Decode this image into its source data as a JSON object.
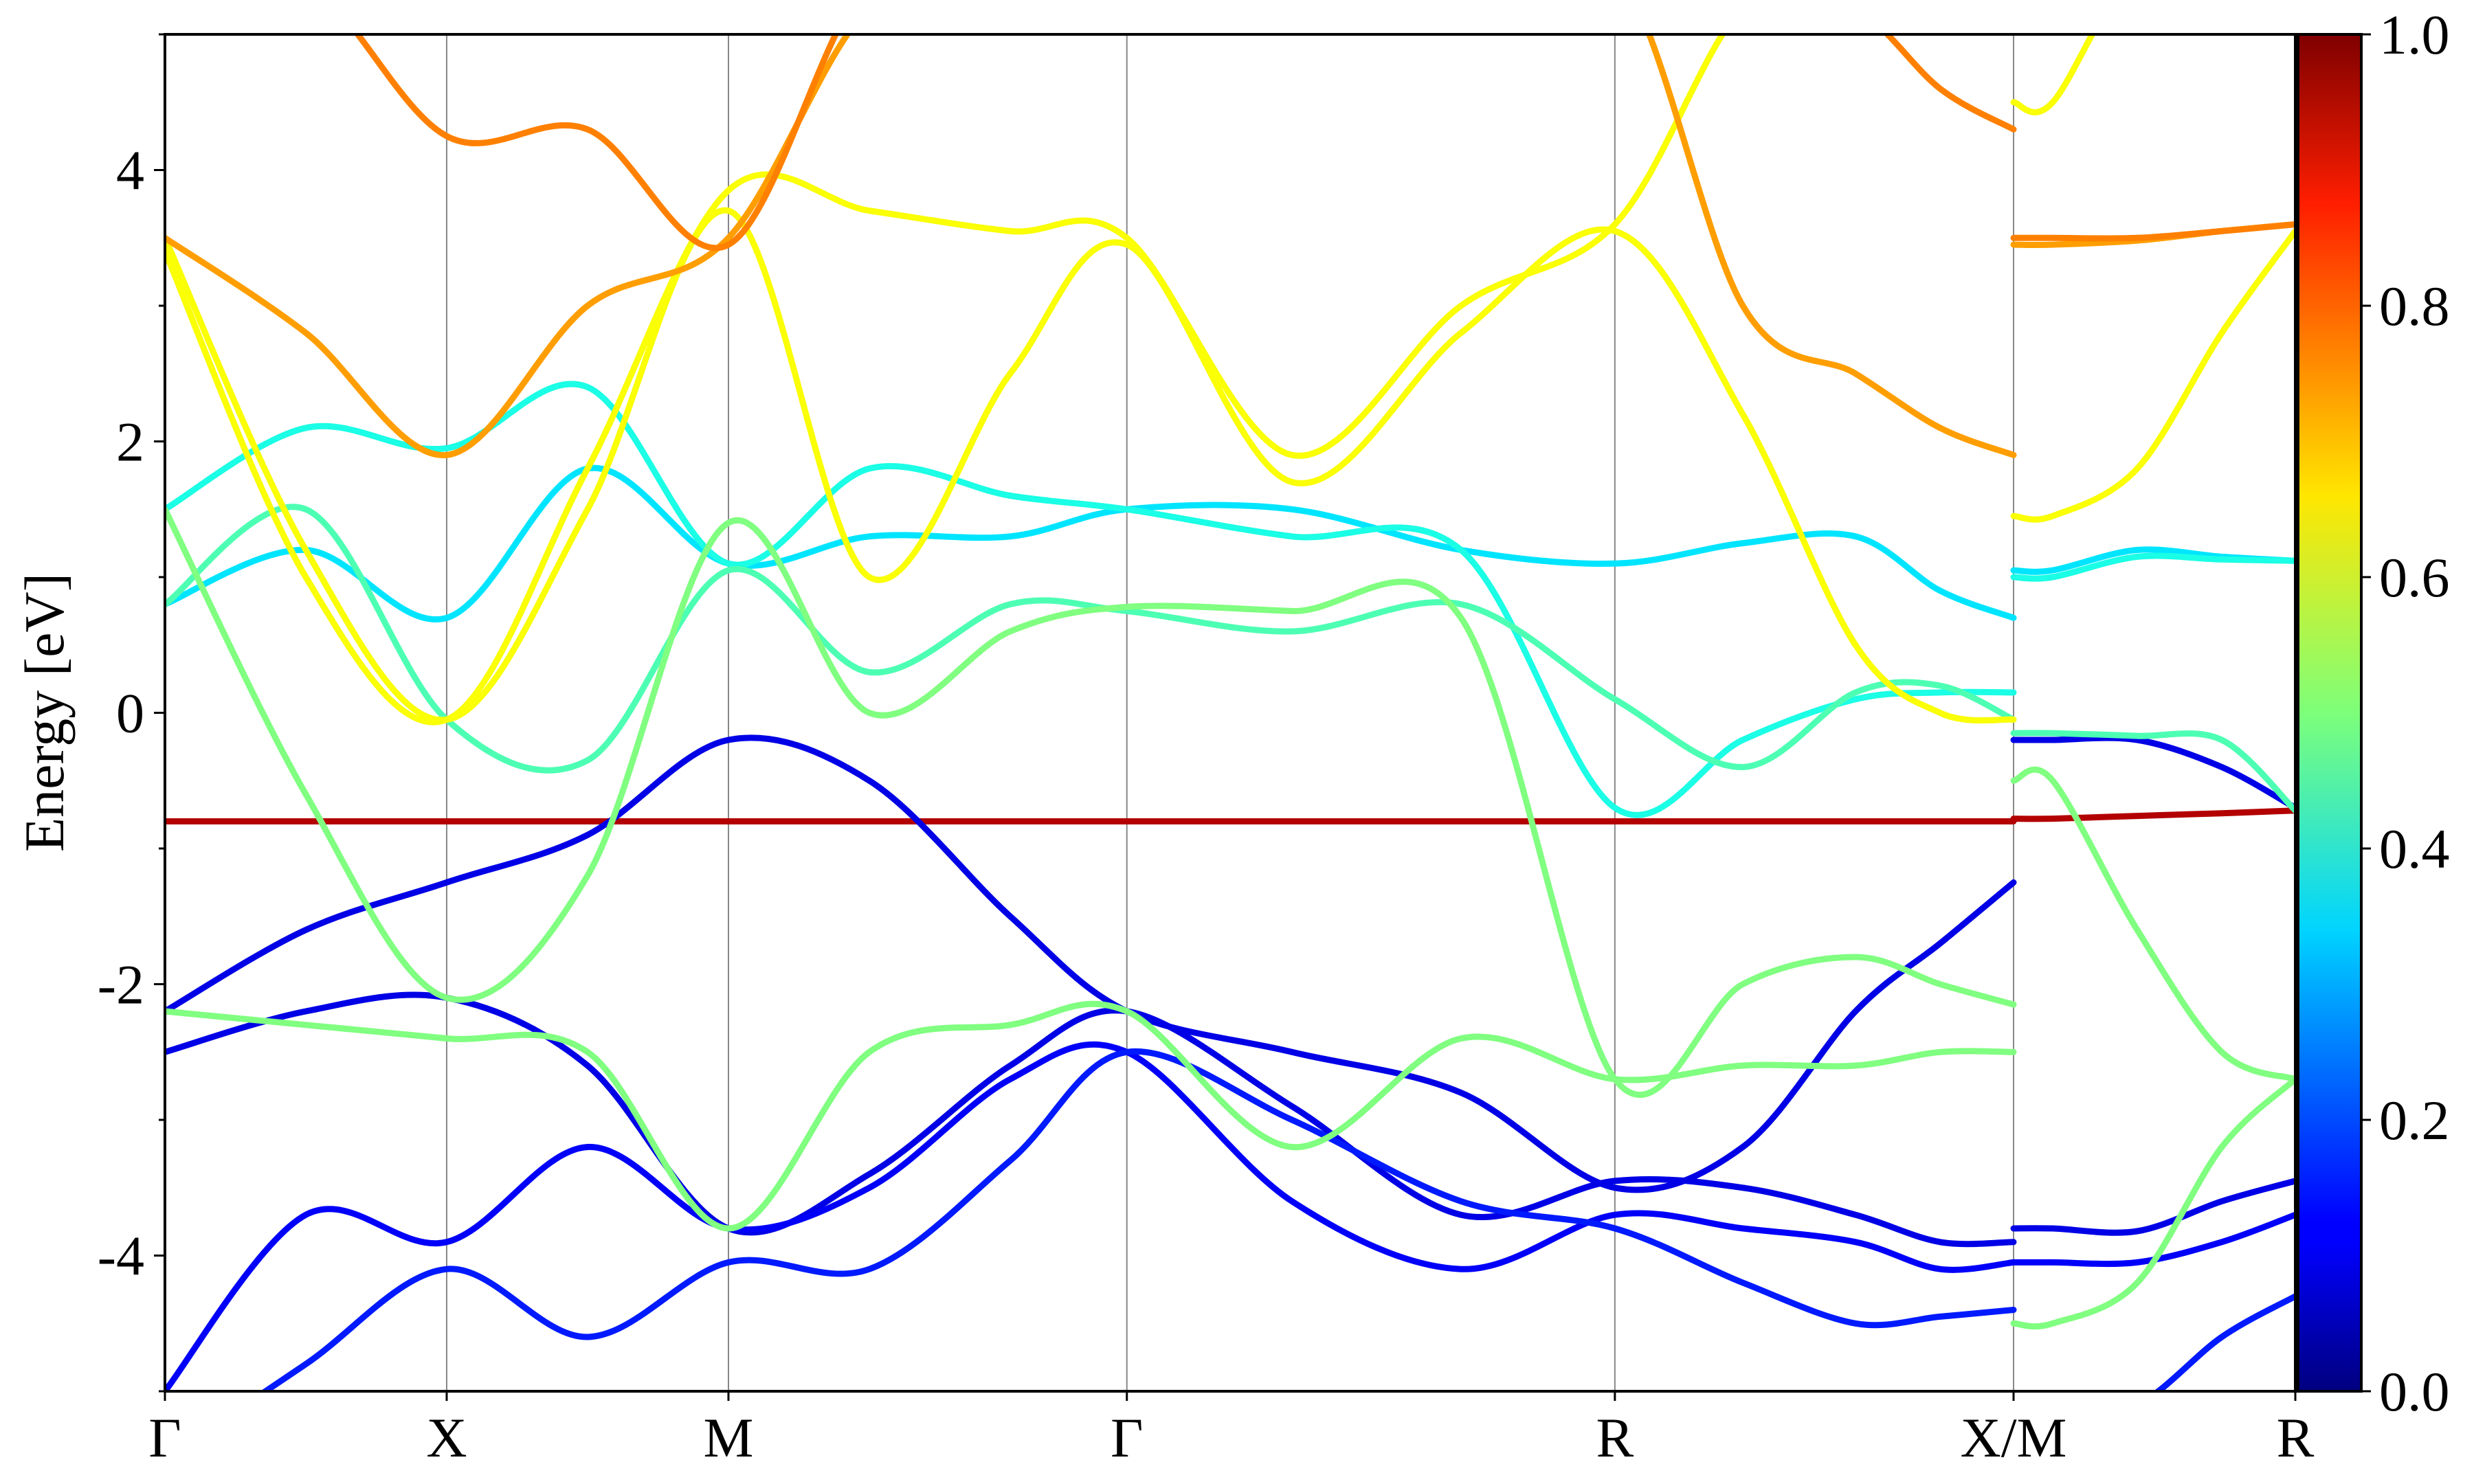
{
  "chart_data": {
    "type": "line",
    "ylabel": "Energy [eV]",
    "ylim": [
      -5,
      5
    ],
    "xlim": [
      0,
      7.6
    ],
    "x_ticks": [
      {
        "label": "Γ",
        "x": 0
      },
      {
        "label": "X",
        "x": 1.0
      },
      {
        "label": "M",
        "x": 2.0
      },
      {
        "label": "Γ",
        "x": 3.414
      },
      {
        "label": "R",
        "x": 5.146
      },
      {
        "label": "X/M",
        "x": 6.561
      },
      {
        "label": "R",
        "x": 7.561
      }
    ],
    "y_ticks": [
      {
        "value": 4,
        "label": "4"
      },
      {
        "value": 2,
        "label": "2"
      },
      {
        "value": 0,
        "label": "0"
      },
      {
        "value": -2,
        "label": "-2"
      },
      {
        "value": -4,
        "label": "-4"
      }
    ],
    "colorbar": {
      "colormap": "jet",
      "range": [
        0,
        1
      ],
      "ticks": [
        "0.0",
        "0.2",
        "0.4",
        "0.6",
        "0.8",
        "1.0"
      ]
    },
    "series": [
      {
        "w": 0.95,
        "x": [
          0,
          0.5,
          1.0,
          1.5,
          2.0,
          2.5,
          3.0,
          3.414,
          4.0,
          4.6,
          5.146,
          5.6,
          6.0,
          6.3,
          6.561,
          6.7,
          7.0,
          7.3,
          7.561
        ],
        "y": [
          -0.8,
          -0.8,
          -0.8,
          -0.8,
          -0.8,
          -0.8,
          -0.8,
          -0.8,
          -0.8,
          -0.8,
          -0.8,
          -0.8,
          -0.8,
          -0.8,
          -0.8,
          -0.78,
          -0.76,
          -0.74,
          -0.72
        ]
      },
      {
        "w": 0.1,
        "x": [
          0,
          0.5,
          1.0,
          1.5,
          2.0,
          2.5,
          3.0,
          3.414,
          4.0,
          4.6,
          5.146,
          5.6,
          6.0,
          6.3,
          6.561,
          6.7,
          7.0,
          7.3,
          7.561
        ],
        "y": [
          -2.2,
          -1.6,
          -1.25,
          -0.9,
          -0.2,
          -0.5,
          -1.5,
          -2.2,
          -2.5,
          -2.8,
          -3.5,
          -3.2,
          -2.2,
          -1.7,
          -1.25,
          -0.2,
          -0.2,
          -0.4,
          -0.7
        ]
      },
      {
        "w": 0.1,
        "x": [
          0,
          0.5,
          1.0,
          1.5,
          2.0,
          2.5,
          3.0,
          3.414,
          4.0,
          4.6,
          5.146,
          5.6,
          6.0,
          6.3,
          6.561,
          6.7,
          7.0,
          7.3,
          7.561
        ],
        "y": [
          -2.5,
          -2.2,
          -2.1,
          -2.6,
          -3.8,
          -3.4,
          -2.6,
          -2.2,
          -2.9,
          -3.7,
          -3.45,
          -3.5,
          -3.7,
          -3.9,
          -3.9,
          -3.8,
          -3.82,
          -3.6,
          -3.45
        ]
      },
      {
        "w": 0.12,
        "x": [
          0,
          0.5,
          1.0,
          1.5,
          2.0,
          2.5,
          3.0,
          3.414,
          4.0,
          4.6,
          5.146,
          5.6,
          6.0,
          6.3,
          6.561,
          6.7,
          7.0,
          7.3,
          7.561
        ],
        "y": [
          -5.0,
          -3.7,
          -3.9,
          -3.2,
          -3.8,
          -3.5,
          -2.7,
          -2.5,
          -3.6,
          -4.1,
          -3.7,
          -3.8,
          -3.9,
          -4.1,
          -4.05,
          -4.05,
          -4.05,
          -3.9,
          -3.7
        ]
      },
      {
        "w": 0.15,
        "x": [
          0,
          0.5,
          1.0,
          1.5,
          2.0,
          2.5,
          3.0,
          3.414,
          4.0,
          4.6,
          5.146,
          5.6,
          6.0,
          6.3,
          6.561,
          6.7,
          7.0,
          7.3,
          7.561
        ],
        "y": [
          -5.5,
          -4.8,
          -4.1,
          -4.6,
          -4.05,
          -4.1,
          -3.3,
          -2.5,
          -3.0,
          -3.6,
          -3.8,
          -4.2,
          -4.5,
          -4.45,
          -4.4,
          -5.2,
          -5.1,
          -4.6,
          -4.3
        ]
      },
      {
        "w": 0.35,
        "x": [
          0,
          0.5,
          1.0,
          1.5,
          2.0,
          2.5,
          3.0,
          3.414,
          4.0,
          4.6,
          5.146,
          5.6,
          6.0,
          6.3,
          6.561,
          6.7,
          7.0,
          7.3,
          7.561
        ],
        "y": [
          0.8,
          1.2,
          0.7,
          1.8,
          1.1,
          1.3,
          1.3,
          1.5,
          1.5,
          1.2,
          1.1,
          1.25,
          1.3,
          0.9,
          0.7,
          1.05,
          1.2,
          1.15,
          1.12
        ]
      },
      {
        "w": 0.4,
        "x": [
          0,
          0.5,
          1.0,
          1.5,
          2.0,
          2.5,
          3.0,
          3.414,
          4.0,
          4.6,
          5.146,
          5.6,
          6.0,
          6.3,
          6.561,
          6.7,
          7.0,
          7.3,
          7.561
        ],
        "y": [
          1.5,
          2.1,
          1.95,
          2.4,
          1.1,
          1.8,
          1.6,
          1.5,
          1.3,
          1.2,
          -0.7,
          -0.2,
          0.1,
          0.15,
          0.15,
          1.0,
          1.15,
          1.13,
          1.12
        ]
      },
      {
        "w": 0.45,
        "x": [
          0,
          0.5,
          1.0,
          1.5,
          2.0,
          2.5,
          3.0,
          3.414,
          4.0,
          4.6,
          5.146,
          5.6,
          6.0,
          6.3,
          6.561,
          6.7,
          7.0,
          7.3,
          7.561
        ],
        "y": [
          0.8,
          1.5,
          -0.05,
          -0.35,
          1.05,
          0.3,
          0.8,
          0.75,
          0.6,
          0.8,
          0.1,
          -0.4,
          0.15,
          0.2,
          -0.05,
          -0.15,
          -0.17,
          -0.2,
          -0.72
        ]
      },
      {
        "w": 0.5,
        "x": [
          0,
          0.5,
          1.0,
          1.5,
          2.0,
          2.5,
          3.0,
          3.414,
          4.0,
          4.6,
          5.146,
          5.6,
          6.0,
          6.3,
          6.561,
          6.7,
          7.0,
          7.3,
          7.561
        ],
        "y": [
          1.5,
          -0.6,
          -2.1,
          -1.2,
          1.4,
          0.0,
          0.6,
          0.78,
          0.75,
          0.7,
          -2.7,
          -2.0,
          -1.8,
          -2.0,
          -2.15,
          -0.5,
          -1.6,
          -2.5,
          -2.7
        ]
      },
      {
        "w": 0.5,
        "x": [
          0,
          0.5,
          1.0,
          1.5,
          2.0,
          2.5,
          3.0,
          3.414,
          4.0,
          4.6,
          5.146,
          5.6,
          6.0,
          6.3,
          6.561,
          6.7,
          7.0,
          7.3,
          7.561
        ],
        "y": [
          -2.2,
          -2.3,
          -2.4,
          -2.5,
          -3.8,
          -2.5,
          -2.3,
          -2.2,
          -3.2,
          -2.4,
          -2.7,
          -2.6,
          -2.6,
          -2.5,
          -2.5,
          -4.5,
          -4.2,
          -3.2,
          -2.7
        ]
      },
      {
        "w": 0.62,
        "x": [
          0,
          0.5,
          1.0,
          1.5,
          2.0,
          2.5,
          3.0,
          3.414,
          4.0,
          4.6,
          5.146,
          5.6,
          6.0,
          6.3,
          6.561,
          6.7,
          7.0,
          7.3,
          7.561
        ],
        "y": [
          3.5,
          1.2,
          -0.05,
          1.5,
          3.7,
          1.0,
          2.5,
          3.45,
          1.7,
          2.8,
          3.55,
          2.2,
          0.5,
          0.0,
          -0.05,
          1.45,
          1.8,
          2.8,
          3.55
        ]
      },
      {
        "w": 0.62,
        "x": [
          0,
          0.5,
          1.0,
          1.5,
          2.0,
          2.5,
          3.0,
          3.414,
          4.0,
          4.6,
          5.146,
          5.6,
          6.0,
          6.3,
          6.561,
          6.7,
          7.0,
          7.3,
          7.561
        ],
        "y": [
          3.4,
          1.0,
          -0.05,
          1.8,
          3.85,
          3.7,
          3.55,
          3.5,
          1.9,
          3.0,
          3.6,
          5.2,
          5.4,
          5.4,
          5.4,
          4.5,
          5.5,
          5.5,
          5.5
        ]
      },
      {
        "w": 0.72,
        "x": [
          0,
          0.5,
          1.0,
          1.5,
          2.0,
          2.5,
          3.0,
          3.414,
          4.0,
          4.6,
          5.146,
          5.6,
          6.0,
          6.3,
          6.561,
          6.7,
          7.0,
          7.3,
          7.561
        ],
        "y": [
          3.5,
          2.8,
          1.9,
          3.0,
          3.5,
          5.2,
          5.5,
          5.5,
          5.5,
          5.5,
          5.5,
          3.0,
          2.5,
          2.1,
          1.9,
          3.45,
          3.48,
          3.55,
          3.6
        ]
      },
      {
        "w": 0.75,
        "x": [
          0,
          0.5,
          1.0,
          1.5,
          2.0,
          2.5,
          3.0,
          3.414,
          4.0,
          4.6,
          5.146,
          5.6,
          6.0,
          6.3,
          6.561,
          6.7,
          7.0,
          7.3,
          7.561
        ],
        "y": [
          5.5,
          5.4,
          4.25,
          4.3,
          3.45,
          5.4,
          5.5,
          5.5,
          5.5,
          5.5,
          5.5,
          5.5,
          5.2,
          4.6,
          4.3,
          3.5,
          3.5,
          3.55,
          3.6
        ]
      }
    ]
  }
}
